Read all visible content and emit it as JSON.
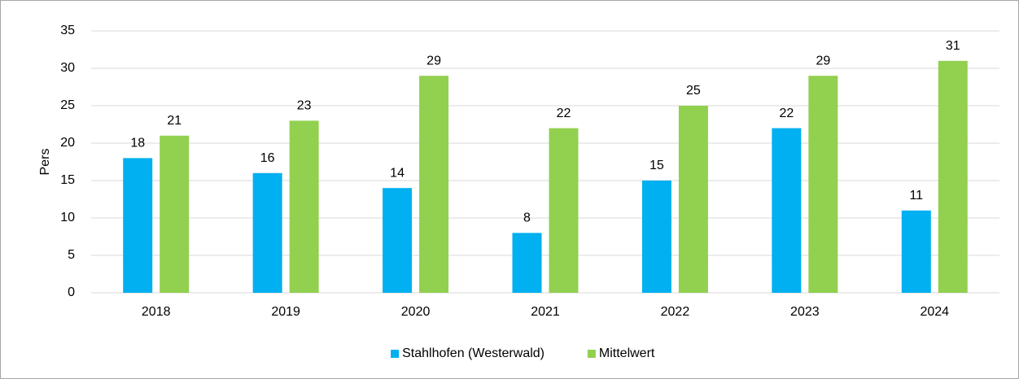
{
  "chart_data": {
    "type": "bar",
    "y_label": "Pers",
    "categories": [
      "2018",
      "2019",
      "2020",
      "2021",
      "2022",
      "2023",
      "2024"
    ],
    "series": [
      {
        "name": "Stahlhofen (Westerwald)",
        "color": "#00b0f0",
        "values": [
          18,
          16,
          14,
          8,
          15,
          22,
          11
        ]
      },
      {
        "name": "Mittelwert",
        "color": "#92d050",
        "values": [
          21,
          23,
          29,
          22,
          25,
          29,
          31
        ]
      }
    ],
    "ylim": [
      0,
      35
    ],
    "yticks": [
      0,
      5,
      10,
      15,
      20,
      25,
      30,
      35
    ],
    "grid": true,
    "legend": "bottom"
  }
}
